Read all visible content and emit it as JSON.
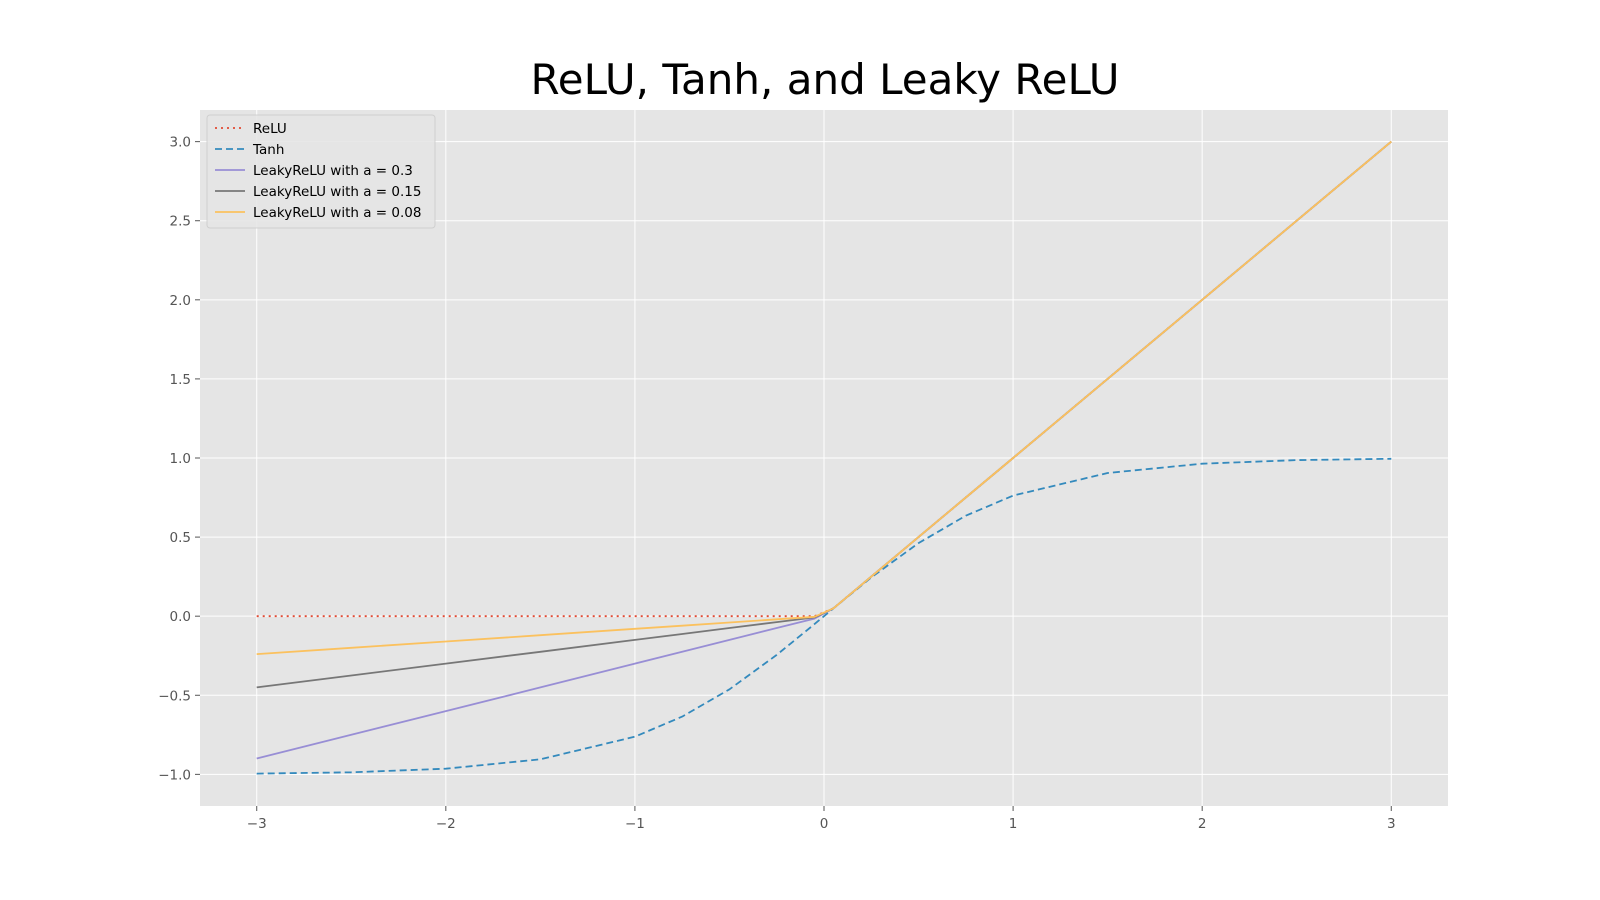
{
  "chart_data": {
    "type": "line",
    "title": "ReLU, Tanh, and Leaky ReLU",
    "xlabel": "",
    "ylabel": "",
    "xlim": [
      -3.3,
      3.3
    ],
    "ylim": [
      -1.2,
      3.2
    ],
    "xticks": [
      -3,
      -2,
      -1,
      0,
      1,
      2,
      3
    ],
    "xtick_labels": [
      "−3",
      "−2",
      "−1",
      "0",
      "1",
      "2",
      "3"
    ],
    "yticks": [
      -1.0,
      -0.5,
      0.0,
      0.5,
      1.0,
      1.5,
      2.0,
      2.5,
      3.0
    ],
    "ytick_labels": [
      "−1.0",
      "−0.5",
      "0.0",
      "0.5",
      "1.0",
      "1.5",
      "2.0",
      "2.5",
      "3.0"
    ],
    "grid": true,
    "legend_position": "top-left",
    "x": [
      -3,
      -2.5,
      -2,
      -1.5,
      -1,
      -0.75,
      -0.5,
      -0.25,
      -0.05,
      0.05,
      0.25,
      0.5,
      0.75,
      1,
      1.5,
      2,
      2.5,
      3
    ],
    "series": [
      {
        "name": "ReLU",
        "color": "#e24a33",
        "style": "dotted",
        "values": [
          0,
          0,
          0,
          0,
          0,
          0,
          0,
          0,
          0,
          0.05,
          0.25,
          0.5,
          0.75,
          1,
          1.5,
          2,
          2.5,
          3
        ]
      },
      {
        "name": "Tanh",
        "color": "#348abd",
        "style": "dashed",
        "values": [
          -0.995,
          -0.987,
          -0.964,
          -0.905,
          -0.762,
          -0.635,
          -0.462,
          -0.245,
          -0.05,
          0.05,
          0.245,
          0.462,
          0.635,
          0.762,
          0.905,
          0.964,
          0.987,
          0.995
        ]
      },
      {
        "name": "LeakyReLU with a = 0.3",
        "color": "#988ed5",
        "style": "solid",
        "values": [
          -0.9,
          -0.75,
          -0.6,
          -0.45,
          -0.3,
          -0.225,
          -0.15,
          -0.075,
          -0.015,
          0.05,
          0.25,
          0.5,
          0.75,
          1,
          1.5,
          2,
          2.5,
          3
        ]
      },
      {
        "name": "LeakyReLU with a = 0.15",
        "color": "#777777",
        "style": "solid",
        "values": [
          -0.45,
          -0.375,
          -0.3,
          -0.225,
          -0.15,
          -0.1125,
          -0.075,
          -0.0375,
          -0.0075,
          0.05,
          0.25,
          0.5,
          0.75,
          1,
          1.5,
          2,
          2.5,
          3
        ]
      },
      {
        "name": "LeakyReLU with a = 0.08",
        "color": "#fbc15e",
        "style": "solid",
        "values": [
          -0.24,
          -0.2,
          -0.16,
          -0.12,
          -0.08,
          -0.06,
          -0.04,
          -0.02,
          -0.004,
          0.05,
          0.25,
          0.5,
          0.75,
          1,
          1.5,
          2,
          2.5,
          3
        ]
      }
    ],
    "colors": {
      "plot_background": "#e5e5e5",
      "grid": "#ffffff",
      "tick": "#555555"
    }
  }
}
